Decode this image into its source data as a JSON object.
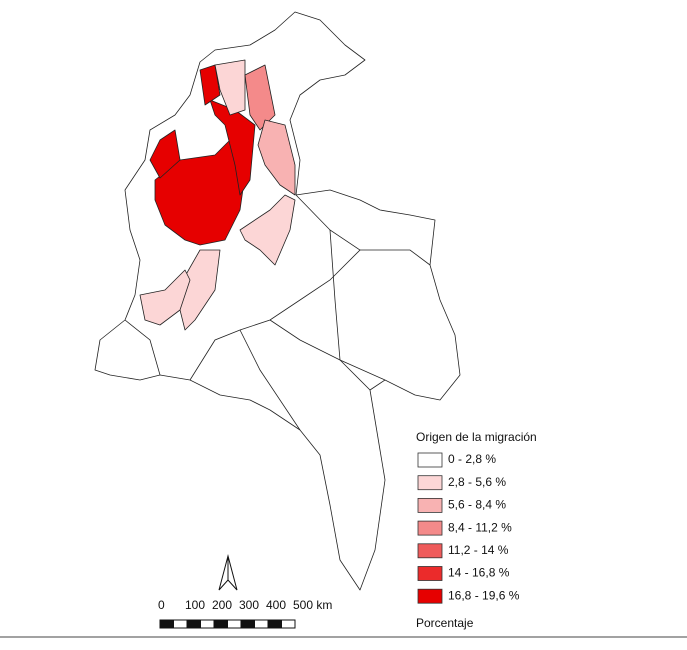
{
  "legend": {
    "title": "Origen de la migración",
    "items": [
      {
        "label": "0 - 2,8 %",
        "color": "#ffffff"
      },
      {
        "label": "2,8 - 5,6 %",
        "color": "#fcd6d6"
      },
      {
        "label": "5,6 - 8,4 %",
        "color": "#f8b2b2"
      },
      {
        "label": "8,4 - 11,2 %",
        "color": "#f48a8a"
      },
      {
        "label": "11,2 - 14 %",
        "color": "#ef5b5b"
      },
      {
        "label": "14 - 16,8 %",
        "color": "#eb2b2b"
      },
      {
        "label": "16,8 - 19,6 %",
        "color": "#e60000"
      }
    ],
    "footer": "Porcentaje"
  },
  "scale": {
    "labels": [
      "0",
      "100",
      "200",
      "300",
      "400",
      "500 km"
    ]
  }
}
